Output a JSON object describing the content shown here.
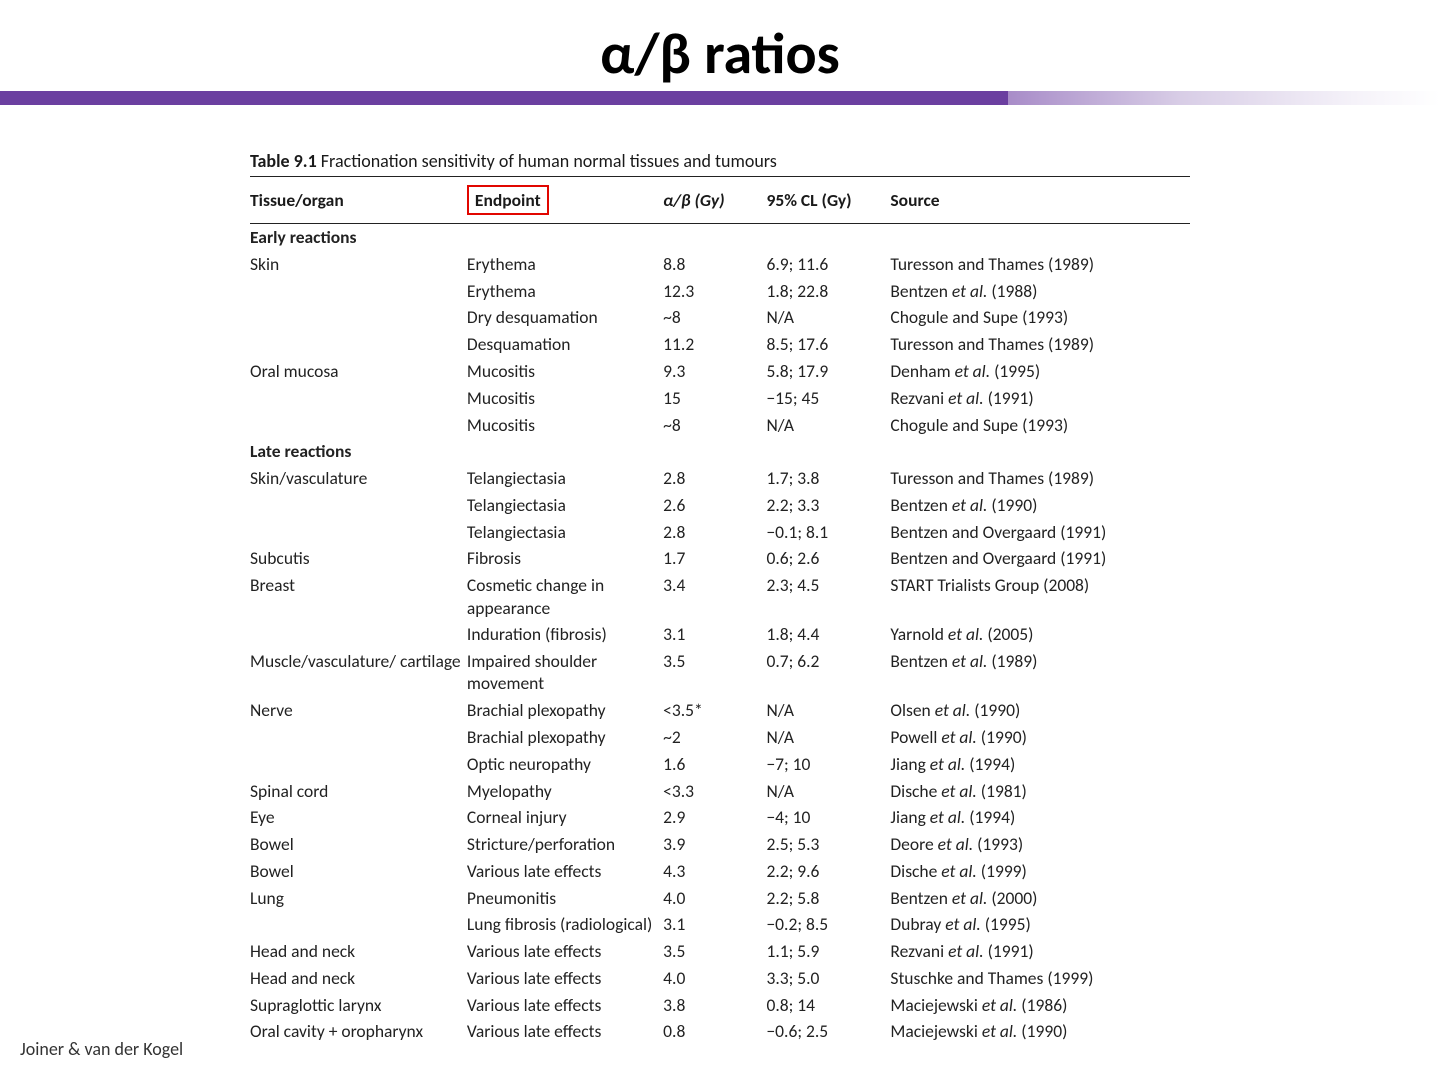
{
  "title": "α/β ratios",
  "title_fontsize": 58,
  "bar_color": "#6b3fa0",
  "table_caption_bold": "Table 9.1",
  "table_caption_rest": "Fractionation sensitivity of human normal tissues and tumours",
  "footer_credit": "Joiner & van der Kogel",
  "highlight_box_color": "#e10600",
  "columns": {
    "tissue": "Tissue/organ",
    "endpoint": "Endpoint",
    "ab": "α/β (Gy)",
    "cl": "95% CL (Gy)",
    "source": "Source"
  },
  "sections": [
    {
      "heading": "Early reactions",
      "rows": [
        {
          "tissue": "Skin",
          "endpoint": "Erythema",
          "ab": "8.8",
          "cl": "6.9; 11.6",
          "source": "Turesson and Thames (1989)"
        },
        {
          "tissue": "",
          "endpoint": "Erythema",
          "ab": "12.3",
          "cl": "1.8; 22.8",
          "source_ital": "Bentzen ",
          "source_rest": "et al. (1988)"
        },
        {
          "tissue": "",
          "endpoint": "Dry desquamation",
          "ab": "~8",
          "cl": "N/A",
          "source": "Chogule and Supe (1993)"
        },
        {
          "tissue": "",
          "endpoint": "Desquamation",
          "ab": "11.2",
          "cl": "8.5; 17.6",
          "source": "Turesson and Thames (1989)"
        },
        {
          "tissue": "Oral mucosa",
          "endpoint": "Mucositis",
          "ab": "9.3",
          "cl": "5.8; 17.9",
          "source_ital": "Denham ",
          "source_rest": "et al. (1995)"
        },
        {
          "tissue": "",
          "endpoint": "Mucositis",
          "ab": "15",
          "cl": "−15; 45",
          "source_ital": "Rezvani ",
          "source_rest": "et al. (1991)"
        },
        {
          "tissue": "",
          "endpoint": "Mucositis",
          "ab": "~8",
          "cl": "N/A",
          "source": "Chogule and Supe (1993)"
        }
      ]
    },
    {
      "heading": "Late reactions",
      "rows": [
        {
          "tissue": "Skin/vasculature",
          "endpoint": "Telangiectasia",
          "ab": "2.8",
          "cl": "1.7; 3.8",
          "source": "Turesson and Thames (1989)"
        },
        {
          "tissue": "",
          "endpoint": "Telangiectasia",
          "ab": "2.6",
          "cl": "2.2; 3.3",
          "source_ital": "Bentzen ",
          "source_rest": "et al. (1990)"
        },
        {
          "tissue": "",
          "endpoint": "Telangiectasia",
          "ab": "2.8",
          "cl": "−0.1; 8.1",
          "source": "Bentzen and Overgaard (1991)"
        },
        {
          "tissue": "Subcutis",
          "endpoint": "Fibrosis",
          "ab": "1.7",
          "cl": "0.6; 2.6",
          "source": "Bentzen and Overgaard (1991)"
        },
        {
          "tissue": "Breast",
          "endpoint": "Cosmetic change in appearance",
          "ab": "3.4",
          "cl": "2.3; 4.5",
          "source": "START Trialists Group (2008)"
        },
        {
          "tissue": "",
          "endpoint": "Induration (fibrosis)",
          "ab": "3.1",
          "cl": "1.8; 4.4",
          "source_ital": "Yarnold ",
          "source_rest": "et al. (2005)"
        },
        {
          "tissue": "Muscle/vasculature/ cartilage",
          "endpoint": "Impaired shoulder movement",
          "ab": "3.5",
          "cl": "0.7; 6.2",
          "source_ital": "Bentzen ",
          "source_rest": "et al. (1989)"
        },
        {
          "tissue": "Nerve",
          "endpoint": "Brachial plexopathy",
          "ab": "<3.5*",
          "cl": "N/A",
          "source_ital": "Olsen ",
          "source_rest": "et al. (1990)"
        },
        {
          "tissue": "",
          "endpoint": "Brachial plexopathy",
          "ab": "~2",
          "cl": "N/A",
          "source_ital": "Powell ",
          "source_rest": "et al. (1990)"
        },
        {
          "tissue": "",
          "endpoint": "Optic neuropathy",
          "ab": "1.6",
          "cl": "−7; 10",
          "source_ital": "Jiang ",
          "source_rest": "et al. (1994)"
        },
        {
          "tissue": "Spinal cord",
          "endpoint": "Myelopathy",
          "ab": "<3.3",
          "cl": "N/A",
          "source_ital": "Dische ",
          "source_rest": "et al. (1981)"
        },
        {
          "tissue": "Eye",
          "endpoint": "Corneal injury",
          "ab": "2.9",
          "cl": "−4; 10",
          "source_ital": "Jiang ",
          "source_rest": "et al. (1994)"
        },
        {
          "tissue": "Bowel",
          "endpoint": "Stricture/perforation",
          "ab": "3.9",
          "cl": "2.5; 5.3",
          "source_ital": "Deore ",
          "source_rest": "et al. (1993)"
        },
        {
          "tissue": "Bowel",
          "endpoint": "Various late effects",
          "ab": "4.3",
          "cl": "2.2; 9.6",
          "source_ital": "Dische ",
          "source_rest": "et al. (1999)"
        },
        {
          "tissue": "Lung",
          "endpoint": "Pneumonitis",
          "ab": "4.0",
          "cl": "2.2; 5.8",
          "source_ital": "Bentzen ",
          "source_rest": "et al. (2000)"
        },
        {
          "tissue": "",
          "endpoint": "Lung fibrosis (radiological)",
          "ab": "3.1",
          "cl": "−0.2; 8.5",
          "source_ital": "Dubray ",
          "source_rest": "et al. (1995)"
        },
        {
          "tissue": "Head and neck",
          "endpoint": "Various late effects",
          "ab": "3.5",
          "cl": "1.1; 5.9",
          "source_ital": "Rezvani ",
          "source_rest": "et al. (1991)"
        },
        {
          "tissue": "Head and neck",
          "endpoint": "Various late effects",
          "ab": "4.0",
          "cl": "3.3; 5.0",
          "source": "Stuschke and Thames (1999)"
        },
        {
          "tissue": "Supraglottic larynx",
          "endpoint": "Various late effects",
          "ab": "3.8",
          "cl": "0.8; 14",
          "source_ital": "Maciejewski ",
          "source_rest": "et al. (1986)"
        },
        {
          "tissue": "Oral cavity + oropharynx",
          "endpoint": "Various late effects",
          "ab": "0.8",
          "cl": "−0.6; 2.5",
          "source_ital": "Maciejewski ",
          "source_rest": "et al. (1990)"
        }
      ]
    }
  ]
}
